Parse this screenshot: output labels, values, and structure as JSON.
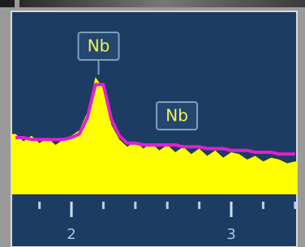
{
  "chart_data": {
    "type": "area",
    "x": [
      1.65,
      1.7,
      1.75,
      1.8,
      1.85,
      1.9,
      1.95,
      2.0,
      2.05,
      2.1,
      2.15,
      2.2,
      2.25,
      2.3,
      2.35,
      2.4,
      2.45,
      2.5,
      2.55,
      2.6,
      2.65,
      2.7,
      2.75,
      2.8,
      2.85,
      2.9,
      2.95,
      3.0,
      3.05,
      3.1,
      3.15,
      3.2,
      3.25,
      3.3,
      3.35,
      3.4
    ],
    "series": [
      {
        "color": "#ffff00",
        "values": [
          33,
          29,
          32,
          28,
          31,
          27,
          30,
          32,
          35,
          45,
          64,
          58,
          38,
          30,
          26,
          29,
          25,
          28,
          24,
          27,
          23,
          26,
          22,
          25,
          21,
          24,
          20,
          23,
          22,
          19,
          21,
          18,
          20,
          19,
          17,
          18
        ]
      },
      {
        "color": "#e020d0",
        "values": [
          31,
          31,
          30,
          30,
          30,
          30,
          30,
          31,
          33,
          42,
          60,
          60,
          41,
          32,
          28,
          28,
          27,
          27,
          27,
          27,
          27,
          26,
          26,
          26,
          25,
          25,
          25,
          24,
          24,
          24,
          23,
          23,
          23,
          22,
          22,
          22
        ]
      }
    ],
    "xlim": [
      1.624,
      3.411
    ],
    "ylim": [
      0,
      100
    ],
    "xticks": [
      2,
      3
    ],
    "xticks_minor": [
      1.8,
      2.2,
      2.4,
      2.6,
      2.8,
      3.2,
      3.4
    ],
    "annotations": [
      {
        "text": "Nb",
        "x": 2.17
      },
      {
        "text": "Nb",
        "x": 2.66
      }
    ]
  }
}
